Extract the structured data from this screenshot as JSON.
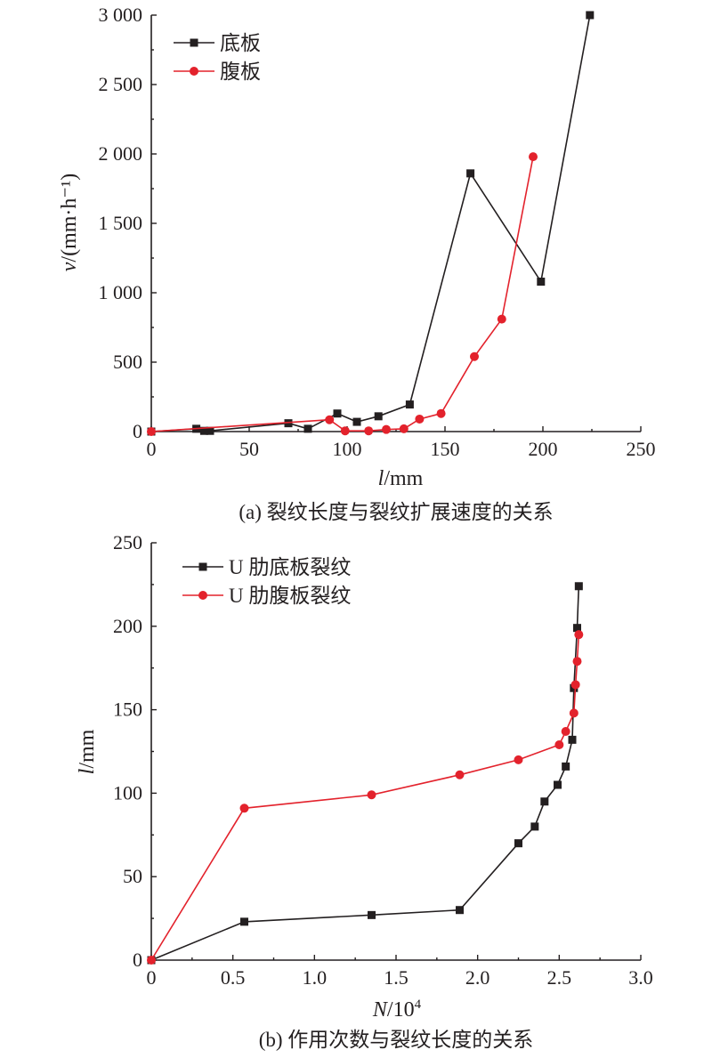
{
  "chart_data": [
    {
      "type": "line",
      "caption": "(a) 裂纹长度与裂纹扩展速度的关系",
      "xlabel_italic": "l",
      "xlabel_rest": "/mm",
      "ylabel_italic": "v",
      "ylabel_rest": "/(mm·h⁻¹)",
      "xlim": [
        0,
        250
      ],
      "ylim": [
        0,
        3000
      ],
      "xticks": [
        0,
        50,
        100,
        150,
        200,
        250
      ],
      "xtick_labels": [
        "0",
        "50",
        "100",
        "150",
        "200",
        "250"
      ],
      "yticks": [
        0,
        500,
        1000,
        1500,
        2000,
        2500,
        3000
      ],
      "ytick_labels": [
        "0",
        "500",
        "1 000",
        "1 500",
        "2 000",
        "2 500",
        "3 000"
      ],
      "grid": false,
      "legend_position": "top-left",
      "series": [
        {
          "name": "底板",
          "color": "#231f20",
          "marker": "square",
          "x": [
            0,
            23,
            27,
            30,
            70,
            80,
            95,
            105,
            116,
            132,
            163,
            199,
            224
          ],
          "y": [
            0,
            20,
            5,
            5,
            60,
            20,
            130,
            70,
            110,
            195,
            1860,
            1080,
            3000
          ]
        },
        {
          "name": "腹板",
          "color": "#e3222c",
          "marker": "circle",
          "x": [
            0,
            91,
            99,
            111,
            120,
            129,
            137,
            148,
            165,
            179,
            195
          ],
          "y": [
            0,
            85,
            5,
            5,
            15,
            20,
            90,
            130,
            540,
            810,
            1980
          ]
        }
      ]
    },
    {
      "type": "line",
      "caption": "(b) 作用次数与裂纹长度的关系",
      "xlabel_italic": "N",
      "xlabel_rest": "/10",
      "xlabel_sup": "4",
      "ylabel_italic": "l",
      "ylabel_rest": "/mm",
      "xlim": [
        0,
        3.0
      ],
      "ylim": [
        0,
        250
      ],
      "xticks": [
        0,
        0.5,
        1.0,
        1.5,
        2.0,
        2.5,
        3.0
      ],
      "xtick_labels": [
        "0",
        "0.5",
        "1.0",
        "1.5",
        "2.0",
        "2.5",
        "3.0"
      ],
      "yticks": [
        0,
        50,
        100,
        150,
        200,
        250
      ],
      "ytick_labels": [
        "0",
        "50",
        "100",
        "150",
        "200",
        "250"
      ],
      "grid": false,
      "legend_position": "top-left",
      "series": [
        {
          "name": "U 肋底板裂纹",
          "color": "#231f20",
          "marker": "square",
          "x": [
            0,
            0.57,
            1.35,
            1.89,
            2.25,
            2.35,
            2.41,
            2.49,
            2.54,
            2.58,
            2.59,
            2.61,
            2.62
          ],
          "y": [
            0,
            23,
            27,
            30,
            70,
            80,
            95,
            105,
            116,
            132,
            163,
            199,
            224
          ]
        },
        {
          "name": "U 肋腹板裂纹",
          "color": "#e3222c",
          "marker": "circle",
          "x": [
            0,
            0.57,
            1.35,
            1.89,
            2.25,
            2.5,
            2.54,
            2.59,
            2.6,
            2.61,
            2.62
          ],
          "y": [
            0,
            91,
            99,
            111,
            120,
            129,
            137,
            148,
            165,
            179,
            195
          ]
        }
      ]
    }
  ]
}
